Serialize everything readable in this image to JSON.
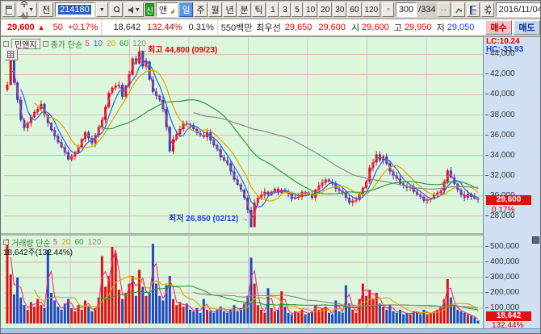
{
  "toolbar": {
    "asset_type": "주식",
    "prev_button": "전",
    "code": "214180",
    "new_badge": "신",
    "stock_name": "민앤지",
    "period_tabs": [
      {
        "label": "일",
        "active": true
      },
      {
        "label": "주",
        "active": false
      },
      {
        "label": "월",
        "active": false
      },
      {
        "label": "년",
        "active": false
      },
      {
        "label": "분",
        "active": false
      },
      {
        "label": "틱",
        "active": false
      }
    ],
    "minute_buttons": [
      "1",
      "3",
      "5",
      "10",
      "20",
      "30",
      "60",
      "120"
    ],
    "bar_count": "300",
    "bar_total": "/334",
    "date": "2016/11/04"
  },
  "infobar": {
    "price": "29,600",
    "arrow": "▲",
    "change": "50",
    "change_pct": "+0.17%",
    "volume": "18,642",
    "volume_ratio": "132.44%",
    "turnover": "0.31%",
    "value": "550백만",
    "best_label": "최우선",
    "best_ask": "29,650",
    "best_bid": "29,600",
    "open_label": "시",
    "open": "29,600",
    "high_label": "고",
    "high": "29,950",
    "low_label": "저",
    "low": "29,050",
    "buy_label": "매수",
    "sell_label": "매도"
  },
  "chart": {
    "name": "민앤지",
    "price_ma_label": "종가 단순",
    "price_ma": [
      {
        "n": "5",
        "color": "#e8308a"
      },
      {
        "n": "10",
        "color": "#3060e0"
      },
      {
        "n": "20",
        "color": "#e0a000"
      },
      {
        "n": "60",
        "color": "#30953a"
      },
      {
        "n": "120",
        "color": "#8a8a80"
      }
    ],
    "volume_ma_label": "거래량 단순",
    "volume_ma": [
      {
        "n": "5",
        "color": "#e8308a"
      },
      {
        "n": "20",
        "color": "#e0a000"
      },
      {
        "n": "60",
        "color": "#30953a"
      },
      {
        "n": "120",
        "color": "#8a8a80"
      }
    ],
    "volume_summary": "18,642주(132.44%)",
    "lc": "LC:10.24",
    "hc": "HC:-33.93",
    "high_annotation": "←최고 44,800 (09/23)",
    "low_annotation": "최저 26,850 (02/12) →",
    "cur_price": "29,600",
    "cur_price_pct": "0.17%",
    "cur_volume": "18,642",
    "cur_volume_pct": "132.44%"
  },
  "chart_data": {
    "type": "candlestick+volume",
    "symbol": "민앤지",
    "code": "214180",
    "last_date": "2016/11/04",
    "visible_bars": "300/334",
    "price_axis": {
      "min": 26300,
      "max": 45550,
      "ticks": [
        44000,
        42000,
        40000,
        38000,
        36000,
        34000,
        32000,
        30000,
        28000
      ]
    },
    "volume_axis": {
      "min": 0,
      "max": 560000,
      "ticks": [
        500000,
        400000,
        300000,
        200000,
        100000
      ]
    },
    "high": {
      "value": 44800,
      "date": "09/23",
      "index": 39
    },
    "low": {
      "value": 26850,
      "date": "02/12",
      "index": 72
    },
    "local_peaks": [
      {
        "index": 109,
        "high": 34400
      },
      {
        "index": 130,
        "high": 32700
      }
    ],
    "current": {
      "close": 29600,
      "change": 50,
      "change_pct": 0.17,
      "volume": 18642,
      "volume_pct": 132.44
    },
    "up_color": "#e01010",
    "down_color": "#2148c0",
    "ma_periods_price": [
      5,
      10,
      20,
      60,
      120
    ],
    "ma_periods_volume": [
      5,
      20,
      60,
      120
    ],
    "closes": [
      41000,
      43500,
      41200,
      39500,
      37500,
      36700,
      37200,
      37800,
      38300,
      38600,
      39100,
      38000,
      37200,
      36500,
      35900,
      35300,
      34800,
      34300,
      33600,
      33900,
      34300,
      34800,
      35600,
      36300,
      35700,
      35200,
      36000,
      36800,
      37500,
      38800,
      40200,
      40700,
      40900,
      41000,
      39800,
      40900,
      42000,
      43600,
      43100,
      44300,
      42800,
      43300,
      41500,
      40300,
      39900,
      39500,
      38600,
      36800,
      34400,
      35600,
      36100,
      36600,
      37200,
      37100,
      37000,
      36600,
      36200,
      36000,
      35800,
      36300,
      35500,
      35000,
      34600,
      33800,
      33500,
      33200,
      32400,
      31600,
      31100,
      30600,
      29800,
      28600,
      26900,
      29300,
      29800,
      30100,
      30400,
      30100,
      30400,
      30700,
      30300,
      30600,
      30400,
      30200,
      29700,
      29800,
      29900,
      30400,
      30300,
      30200,
      29800,
      30600,
      31000,
      31300,
      31600,
      31400,
      31200,
      30700,
      30500,
      30300,
      29800,
      29300,
      29500,
      29600,
      30200,
      30800,
      31400,
      32800,
      33300,
      34100,
      33500,
      33900,
      33200,
      32400,
      32000,
      31700,
      31200,
      31000,
      30800,
      30900,
      30400,
      30100,
      29900,
      29500,
      29600,
      29700,
      30100,
      30300,
      30500,
      31400,
      32500,
      31800,
      31200,
      30600,
      30100,
      29800,
      30200,
      29900,
      29700,
      29600
    ],
    "volumes": [
      550000,
      320000,
      190000,
      300000,
      170000,
      120000,
      90000,
      140000,
      110000,
      160000,
      120000,
      100000,
      480000,
      200000,
      150000,
      110000,
      90000,
      130000,
      160000,
      100000,
      80000,
      120000,
      90000,
      150000,
      110000,
      80000,
      100000,
      170000,
      440000,
      240000,
      310000,
      500000,
      460000,
      220000,
      160000,
      200000,
      260000,
      310000,
      180000,
      350000,
      240000,
      180000,
      200000,
      520000,
      260000,
      180000,
      150000,
      250000,
      310000,
      160000,
      120000,
      140000,
      110000,
      130000,
      90000,
      80000,
      100000,
      70000,
      160000,
      90000,
      80000,
      70000,
      90000,
      110000,
      80000,
      70000,
      90000,
      120000,
      80000,
      100000,
      130000,
      180000,
      430000,
      260000,
      120000,
      90000,
      70000,
      230000,
      100000,
      80000,
      90000,
      210000,
      110000,
      70000,
      60000,
      80000,
      70000,
      90000,
      60000,
      70000,
      80000,
      120000,
      90000,
      100000,
      110000,
      70000,
      60000,
      150000,
      80000,
      70000,
      250000,
      130000,
      90000,
      70000,
      160000,
      260000,
      180000,
      220000,
      160000,
      200000,
      130000,
      110000,
      90000,
      120000,
      80000,
      70000,
      90000,
      60000,
      70000,
      60000,
      80000,
      70000,
      60000,
      90000,
      60000,
      70000,
      80000,
      90000,
      110000,
      160000,
      290000,
      170000,
      120000,
      90000,
      80000,
      70000,
      60000,
      50000,
      40000,
      19000
    ]
  }
}
